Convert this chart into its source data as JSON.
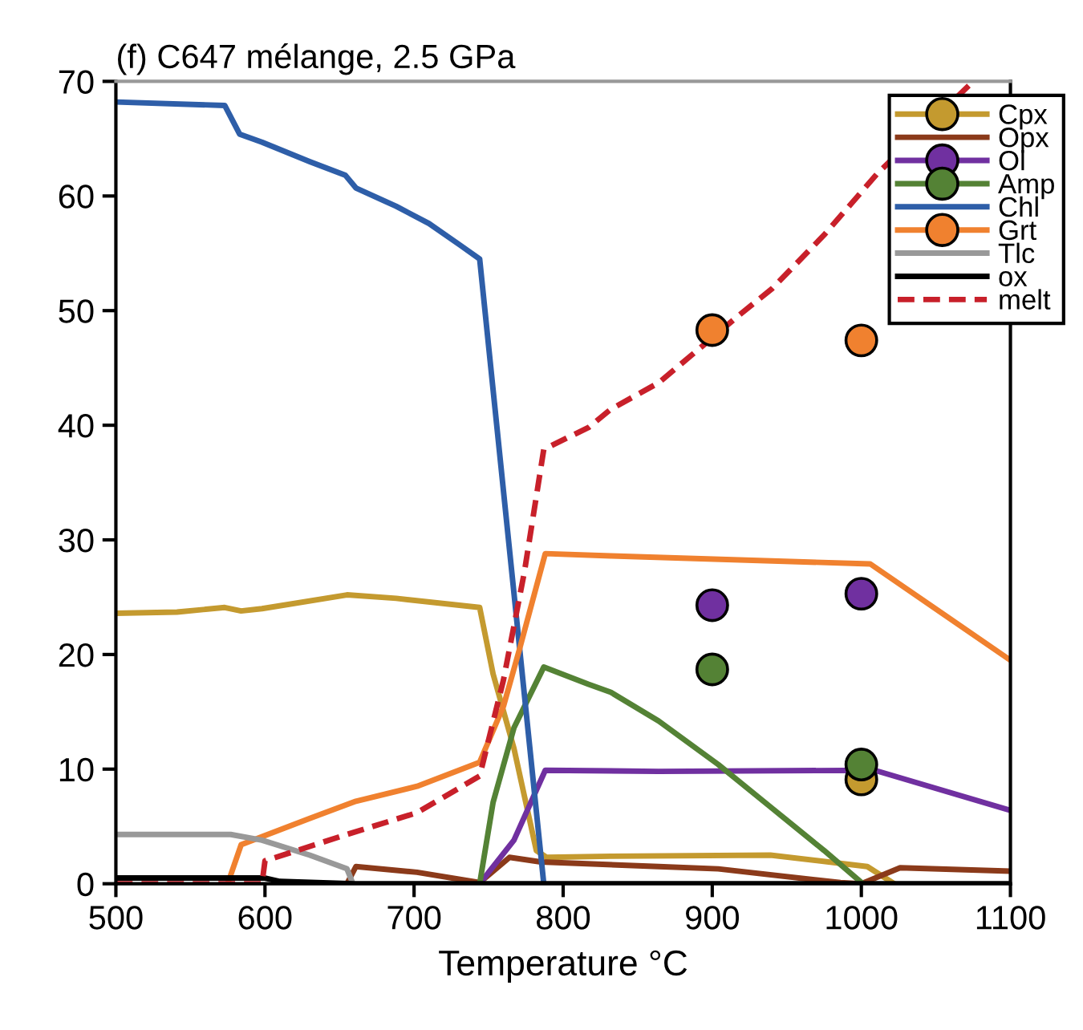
{
  "chart_data": {
    "type": "line",
    "title": "(f) C647 mélange, 2.5 GPa",
    "xlabel": "Temperature °C",
    "xlim": [
      500,
      1100
    ],
    "xticks": [
      500,
      600,
      700,
      800,
      900,
      1000,
      1100
    ],
    "ylim": [
      0,
      70
    ],
    "yticks": [
      0,
      10,
      20,
      30,
      40,
      50,
      60,
      70
    ],
    "grid": false,
    "legend": "top right",
    "line_style": "solid",
    "marker": "none",
    "series": [
      {
        "name": "Cpx",
        "color": "#c49a2f",
        "x": [
          500,
          541,
          573,
          584,
          598,
          655,
          688,
          744,
          753,
          767,
          782,
          789,
          832,
          939,
          1004,
          1022
        ],
        "values": [
          23.6,
          23.7,
          24.1,
          23.8,
          24.0,
          25.2,
          24.9,
          24.1,
          18.3,
          11.8,
          2.9,
          2.3,
          2.4,
          2.5,
          1.5,
          0
        ]
      },
      {
        "name": "Opx",
        "color": "#8b3a1a",
        "x": [
          655,
          661,
          702,
          744,
          764,
          785,
          864,
          904,
          986,
          1000,
          1026,
          1100
        ],
        "values": [
          0,
          1.5,
          1.0,
          0.1,
          2.3,
          1.9,
          1.5,
          1.3,
          0.1,
          0,
          1.4,
          1.1
        ]
      },
      {
        "name": "Ol",
        "color": "#7030a0",
        "x": [
          744,
          767,
          788,
          864,
          1009,
          1100
        ],
        "values": [
          0,
          3.8,
          9.9,
          9.8,
          9.9,
          6.4
        ]
      },
      {
        "name": "Amp",
        "color": "#548235",
        "x": [
          744,
          753,
          767,
          787,
          817,
          832,
          864,
          904,
          940,
          975,
          1001
        ],
        "values": [
          0,
          7.1,
          13.6,
          18.9,
          17.4,
          16.7,
          14.2,
          10.4,
          6.6,
          2.9,
          0
        ]
      },
      {
        "name": "Chl",
        "color": "#2e5ea8",
        "x": [
          500,
          573,
          583,
          598,
          630,
          654,
          661,
          688,
          710,
          731,
          744,
          787
        ],
        "values": [
          68.2,
          67.9,
          65.4,
          64.7,
          63.0,
          61.8,
          60.7,
          59.1,
          57.6,
          55.7,
          54.5,
          0
        ]
      },
      {
        "name": "Grt",
        "color": "#f0812f",
        "x": [
          575,
          584,
          598,
          630,
          661,
          702,
          744,
          760,
          771,
          788,
          832,
          1006,
          1100
        ],
        "values": [
          0,
          3.4,
          4.1,
          5.7,
          7.2,
          8.5,
          10.6,
          15.5,
          20.6,
          28.8,
          28.6,
          27.9,
          19.5
        ]
      },
      {
        "name": "Tlc",
        "color": "#999999",
        "x": [
          500,
          577,
          598,
          630,
          655,
          659
        ],
        "values": [
          4.3,
          4.3,
          3.8,
          2.5,
          1.3,
          0
        ]
      },
      {
        "name": "ox",
        "color": "#000000",
        "x": [
          500,
          600,
          610,
          660,
          1100
        ],
        "values": [
          0.5,
          0.5,
          0.2,
          0,
          0
        ]
      },
      {
        "name": "melt",
        "color": "#c8202a",
        "line_style": "dashed",
        "x": [
          500,
          598,
          600,
          655,
          702,
          744,
          760,
          774,
          787,
          817,
          832,
          864,
          886,
          918,
          940,
          975,
          1011,
          1075
        ],
        "values": [
          0,
          0,
          2.0,
          4.3,
          6.2,
          9.4,
          17.8,
          27.2,
          37.9,
          39.8,
          41.4,
          43.7,
          46.1,
          49.6,
          51.9,
          56.6,
          62.0,
          70
        ]
      },
      {
        "type": "scatter",
        "marker": "circle",
        "color": "#c49a2f",
        "x": [
          1000
        ],
        "values": [
          9.1
        ]
      },
      {
        "type": "scatter",
        "marker": "circle",
        "color": "#7030a0",
        "x": [
          900,
          1000
        ],
        "values": [
          24.3,
          25.3
        ]
      },
      {
        "type": "scatter",
        "marker": "circle",
        "color": "#548235",
        "x": [
          900,
          1000
        ],
        "values": [
          18.7,
          10.4
        ]
      },
      {
        "type": "scatter",
        "marker": "circle",
        "color": "#f0812f",
        "x": [
          900,
          1000
        ],
        "values": [
          48.3,
          47.4
        ]
      }
    ]
  }
}
